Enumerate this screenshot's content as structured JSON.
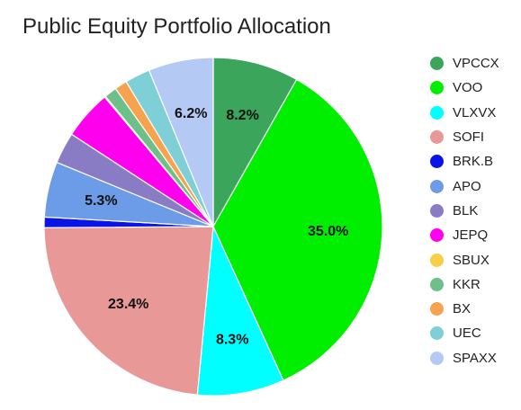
{
  "chart_data": {
    "type": "pie",
    "title": "Public Equity Portfolio Allocation",
    "legend_position": "right",
    "slices": [
      {
        "name": "VPCCX",
        "value": 8.2,
        "color": "#3ba55c",
        "label": "8.2%"
      },
      {
        "name": "VOO",
        "value": 35.0,
        "color": "#00ee00",
        "label": "35.0%"
      },
      {
        "name": "VLXVX",
        "value": 8.3,
        "color": "#00ffff",
        "label": "8.3%"
      },
      {
        "name": "SOFI",
        "value": 23.4,
        "color": "#e99898",
        "label": "23.4%"
      },
      {
        "name": "BRK.B",
        "value": 1.0,
        "color": "#0a14e6",
        "label": ""
      },
      {
        "name": "APO",
        "value": 5.3,
        "color": "#6c9ce8",
        "label": "5.3%"
      },
      {
        "name": "BLK",
        "value": 3.0,
        "color": "#8a7cc4",
        "label": ""
      },
      {
        "name": "JEPQ",
        "value": 4.7,
        "color": "#ff00ee",
        "label": ""
      },
      {
        "name": "SBUX",
        "value": 0.1,
        "color": "#f9cd45",
        "label": ""
      },
      {
        "name": "KKR",
        "value": 1.2,
        "color": "#6fbf8a",
        "label": ""
      },
      {
        "name": "BX",
        "value": 1.2,
        "color": "#f7a24e",
        "label": ""
      },
      {
        "name": "UEC",
        "value": 2.4,
        "color": "#7ecfd6",
        "label": ""
      },
      {
        "name": "SPAXX",
        "value": 6.2,
        "color": "#b5c9f5",
        "label": "6.2%"
      }
    ]
  }
}
